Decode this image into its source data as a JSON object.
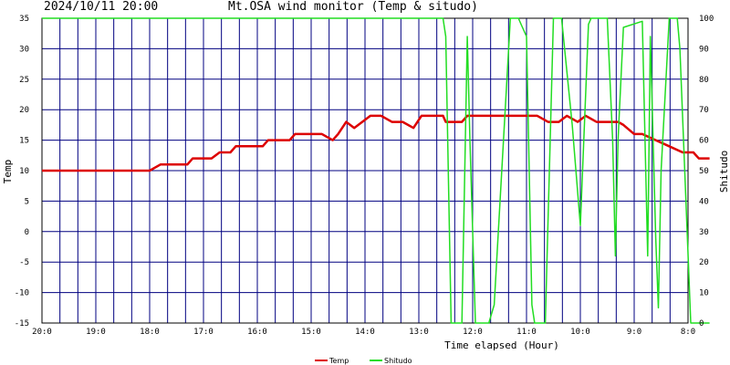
{
  "header": {
    "timestamp": "2024/10/11 20:00",
    "title": "Mt.OSA wind monitor (Temp & situdo)"
  },
  "chart_data": {
    "type": "line",
    "xlabel": "Time elapsed (Hour)",
    "ylabel_left": "Temp",
    "ylabel_right": "Shitudo",
    "ylim_left": [
      -15,
      35
    ],
    "ylim_right": [
      0,
      100
    ],
    "x_ticks": [
      "20:0",
      "19:0",
      "18:0",
      "17:0",
      "16:0",
      "15:0",
      "14:0",
      "13:0",
      "12:0",
      "11:0",
      "10:0",
      "9:0",
      "8:0"
    ],
    "x_tick_hours": [
      20,
      19,
      18,
      17,
      16,
      15,
      14,
      13,
      12,
      11,
      10,
      9,
      8
    ],
    "y_ticks_left": [
      35,
      30,
      25,
      20,
      15,
      10,
      5,
      0,
      -5,
      -10,
      -15
    ],
    "y_ticks_right": [
      100,
      90,
      80,
      70,
      60,
      50,
      40,
      30,
      20,
      10,
      0
    ],
    "grid": true,
    "legend_position": "bottom-center",
    "series": [
      {
        "name": "Temp",
        "axis": "left",
        "color": "#dd0000",
        "points": [
          [
            20.0,
            10
          ],
          [
            18.5,
            10
          ],
          [
            18.0,
            10
          ],
          [
            17.8,
            11
          ],
          [
            17.3,
            11
          ],
          [
            17.2,
            12
          ],
          [
            16.85,
            12
          ],
          [
            16.7,
            13
          ],
          [
            16.5,
            13
          ],
          [
            16.4,
            14
          ],
          [
            15.9,
            14
          ],
          [
            15.8,
            15
          ],
          [
            15.4,
            15
          ],
          [
            15.3,
            16
          ],
          [
            14.8,
            16
          ],
          [
            14.6,
            15
          ],
          [
            14.5,
            16
          ],
          [
            14.35,
            18
          ],
          [
            14.2,
            17
          ],
          [
            13.9,
            19
          ],
          [
            13.7,
            19
          ],
          [
            13.5,
            18
          ],
          [
            13.3,
            18
          ],
          [
            13.1,
            17
          ],
          [
            12.95,
            19
          ],
          [
            12.55,
            19
          ],
          [
            12.5,
            18
          ],
          [
            12.2,
            18
          ],
          [
            12.1,
            19
          ],
          [
            10.8,
            19
          ],
          [
            10.6,
            18
          ],
          [
            10.4,
            18
          ],
          [
            10.25,
            19
          ],
          [
            10.05,
            18
          ],
          [
            9.9,
            19
          ],
          [
            9.7,
            18
          ],
          [
            9.3,
            18
          ],
          [
            9.2,
            17.5
          ],
          [
            9.0,
            16
          ],
          [
            8.85,
            16
          ],
          [
            8.6,
            15
          ],
          [
            8.35,
            14
          ],
          [
            8.1,
            13
          ],
          [
            7.9,
            13
          ],
          [
            7.8,
            12
          ],
          [
            7.6,
            12
          ]
        ]
      },
      {
        "name": "Shitudo",
        "axis": "right",
        "color": "#22dd22",
        "points": [
          [
            20.0,
            100
          ],
          [
            12.55,
            100
          ],
          [
            12.5,
            94
          ],
          [
            12.4,
            0
          ],
          [
            12.2,
            0
          ],
          [
            12.1,
            94
          ],
          [
            12.05,
            60
          ],
          [
            11.95,
            0
          ],
          [
            11.7,
            0
          ],
          [
            11.6,
            6
          ],
          [
            11.3,
            100
          ],
          [
            11.15,
            100
          ],
          [
            11.0,
            94
          ],
          [
            10.9,
            6
          ],
          [
            10.85,
            0
          ],
          [
            10.65,
            0
          ],
          [
            10.5,
            100
          ],
          [
            10.35,
            100
          ],
          [
            10.15,
            65
          ],
          [
            10.0,
            32
          ],
          [
            9.85,
            98
          ],
          [
            9.8,
            100
          ],
          [
            9.5,
            100
          ],
          [
            9.4,
            60
          ],
          [
            9.35,
            22
          ],
          [
            9.3,
            60
          ],
          [
            9.2,
            97
          ],
          [
            8.85,
            99
          ],
          [
            8.75,
            22
          ],
          [
            8.7,
            94
          ],
          [
            8.6,
            28
          ],
          [
            8.55,
            5
          ],
          [
            8.5,
            50
          ],
          [
            8.35,
            100
          ],
          [
            8.2,
            100
          ],
          [
            8.15,
            90
          ],
          [
            7.95,
            0
          ],
          [
            7.6,
            0
          ]
        ]
      }
    ]
  }
}
